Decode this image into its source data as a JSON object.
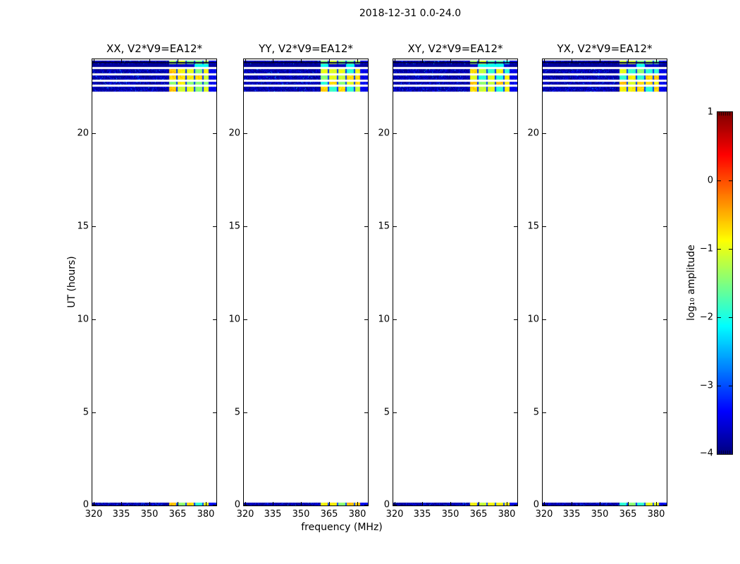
{
  "chart_data": {
    "type": "heatmap",
    "title": "2018-12-31 0.0-24.0",
    "xlabel": "frequency (MHz)",
    "ylabel": "UT (hours)",
    "xlim": [
      319.4,
      385.6
    ],
    "ylim": [
      0,
      24
    ],
    "xticks": [
      320,
      335,
      350,
      365,
      380
    ],
    "yticks": [
      0,
      5,
      10,
      15,
      20
    ],
    "grid": false,
    "panels": [
      {
        "title": "XX, V2*V9=EA12*"
      },
      {
        "title": "YY, V2*V9=EA12*"
      },
      {
        "title": "XY, V2*V9=EA12*"
      },
      {
        "title": "YX, V2*V9=EA12*"
      }
    ],
    "colorbar": {
      "label": "log₁₀ amplitude",
      "colormap": "jet",
      "vmin": -4,
      "vmax": 1,
      "ticks": [
        1,
        0,
        -1,
        -2,
        -3,
        -4
      ],
      "tick_labels": [
        "1",
        "0",
        "−1",
        "−2",
        "−3",
        "−4"
      ],
      "position": "right"
    },
    "freq_bands": {
      "noise_low_mhz": [
        319.4,
        360.3
      ],
      "rfi_mhz": [
        360.3,
        381.5
      ],
      "noise_high_mhz": [
        381.5,
        385.6
      ],
      "rfi_separators_mhz": [
        364.7,
        369.5,
        374.0,
        378.5
      ]
    },
    "amplitude_levels": {
      "noise_floor_log10": -3.8,
      "rfi_log10_range": [
        -2.0,
        -0.6
      ]
    },
    "time_stripes": [
      {
        "ut_start": 23.73,
        "ut_end": 23.94,
        "kind": "noisy",
        "palette": "cool",
        "dark_line": true
      },
      {
        "ut_start": 23.6,
        "ut_end": 23.73,
        "kind": "dark",
        "palette": "cool",
        "dark_line": false
      },
      {
        "ut_start": 23.24,
        "ut_end": 23.47,
        "kind": "noisy",
        "palette": "warm",
        "dark_line": false
      },
      {
        "ut_start": 22.9,
        "ut_end": 23.13,
        "kind": "noisy",
        "palette": "warm",
        "dark_line": false
      },
      {
        "ut_start": 22.64,
        "ut_end": 22.78,
        "kind": "noisy",
        "palette": "warm",
        "dark_line": false
      },
      {
        "ut_start": 22.26,
        "ut_end": 22.53,
        "kind": "noisy",
        "palette": "warm",
        "dark_line": false
      },
      {
        "ut_start": 0.0,
        "ut_end": 0.17,
        "kind": "noisy",
        "palette": "warm",
        "dark_line": false
      }
    ]
  }
}
